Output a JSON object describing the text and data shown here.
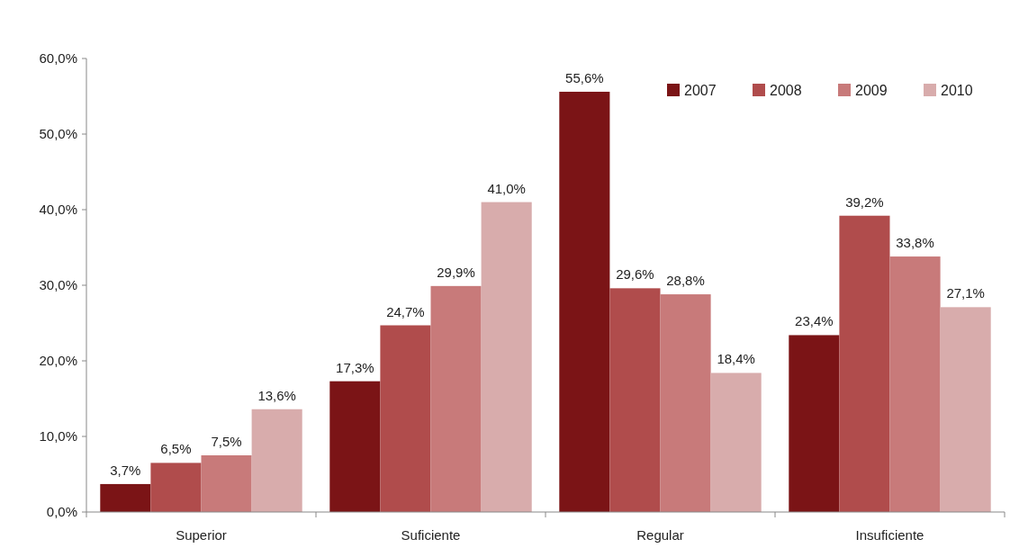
{
  "chart_data": {
    "type": "bar",
    "categories": [
      "Superior",
      "Suficiente",
      "Regular",
      "Insuficiente"
    ],
    "series": [
      {
        "name": "2007",
        "color": "#7b1416",
        "values": [
          3.7,
          17.3,
          55.6,
          23.4
        ],
        "value_labels": [
          "3,7%",
          "17,3%",
          "55,6%",
          "23,4%"
        ]
      },
      {
        "name": "2008",
        "color": "#b04c4c",
        "values": [
          6.5,
          24.7,
          29.6,
          39.2
        ],
        "value_labels": [
          "6,5%",
          "24,7%",
          "29,6%",
          "39,2%"
        ]
      },
      {
        "name": "2009",
        "color": "#c87a7a",
        "values": [
          7.5,
          29.9,
          28.8,
          33.8
        ],
        "value_labels": [
          "7,5%",
          "29,9%",
          "28,8%",
          "33,8%"
        ]
      },
      {
        "name": "2010",
        "color": "#d8acac",
        "values": [
          13.6,
          41.0,
          18.4,
          27.1
        ],
        "value_labels": [
          "13,6%",
          "41,0%",
          "18,4%",
          "27,1%"
        ]
      }
    ],
    "ylim": [
      0,
      60
    ],
    "yticks": [
      {
        "value": 0,
        "label": "0,0%"
      },
      {
        "value": 10,
        "label": "10,0%"
      },
      {
        "value": 20,
        "label": "20,0%"
      },
      {
        "value": 30,
        "label": "30,0%"
      },
      {
        "value": 40,
        "label": "40,0%"
      },
      {
        "value": 50,
        "label": "50,0%"
      },
      {
        "value": 60,
        "label": "60,0%"
      }
    ],
    "grid": false,
    "legend": "top right"
  }
}
